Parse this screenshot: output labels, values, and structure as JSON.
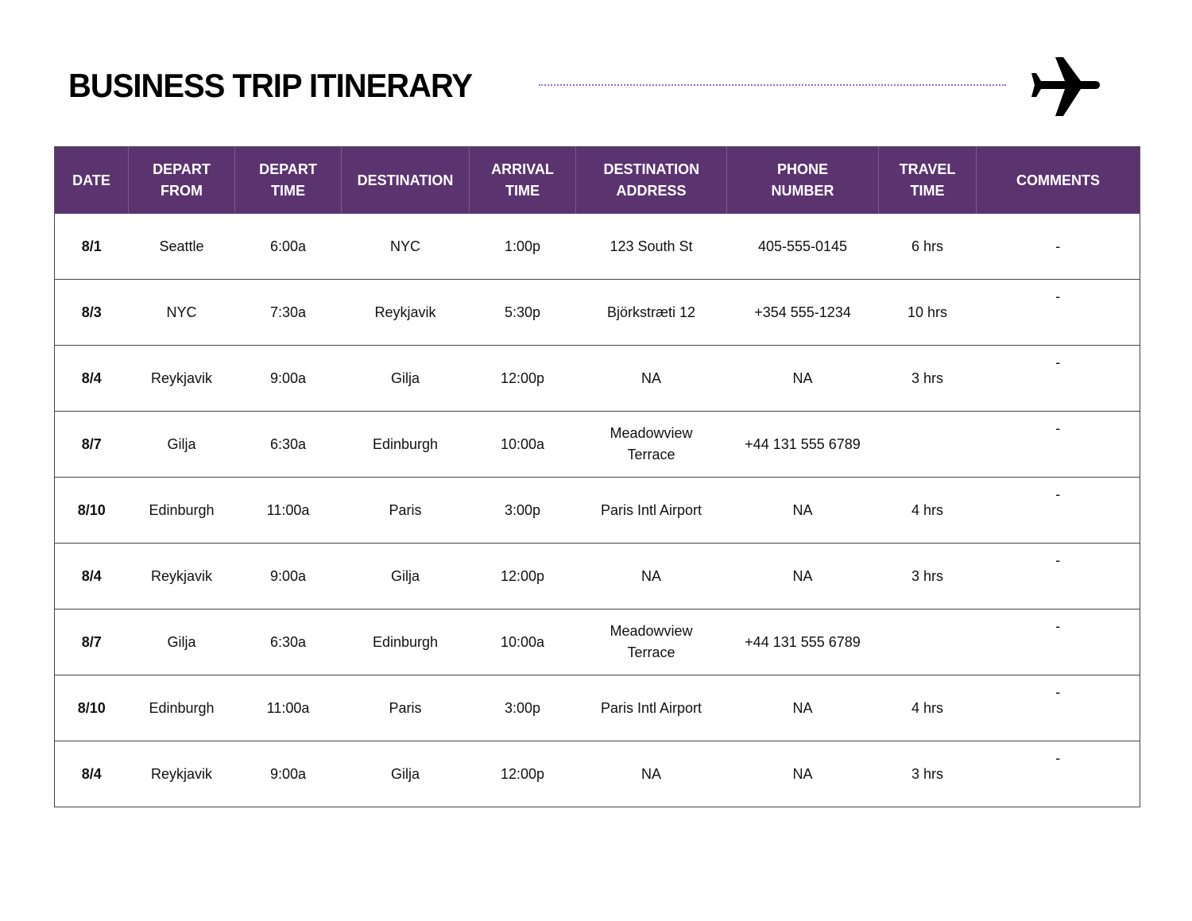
{
  "header": {
    "title": "BUSINESS TRIP ITINERARY",
    "icon": "airplane-icon",
    "divider_color": "#9a6cc4"
  },
  "colors": {
    "header_bg": "#5b346f",
    "header_text": "#ffffff"
  },
  "table": {
    "columns": [
      "DATE",
      "DEPART FROM",
      "DEPART TIME",
      "DESTINATION",
      "ARRIVAL TIME",
      "DESTINATION ADDRESS",
      "PHONE NUMBER",
      "TRAVEL TIME",
      "COMMENTS"
    ],
    "rows": [
      {
        "date": "8/1",
        "depart_from": "Seattle",
        "depart_time": "6:00a",
        "destination": "NYC",
        "arrival_time": "1:00p",
        "address": "123 South St",
        "phone": "405-555-0145",
        "travel_time": "6 hrs",
        "comments": "-"
      },
      {
        "date": "8/3",
        "depart_from": "NYC",
        "depart_time": "7:30a",
        "destination": "Reykjavik",
        "arrival_time": "5:30p",
        "address": "Björkstræti 12",
        "phone": "+354 555-1234",
        "travel_time": "10 hrs",
        "comments": "-"
      },
      {
        "date": "8/4",
        "depart_from": "Reykjavik",
        "depart_time": "9:00a",
        "destination": "Gilja",
        "arrival_time": "12:00p",
        "address": "NA",
        "phone": "NA",
        "travel_time": "3 hrs",
        "comments": "-"
      },
      {
        "date": "8/7",
        "depart_from": "Gilja",
        "depart_time": "6:30a",
        "destination": "Edinburgh",
        "arrival_time": "10:00a",
        "address": "Meadowview Terrace",
        "phone": "+44 131 555 6789",
        "travel_time": "",
        "comments": "-"
      },
      {
        "date": "8/10",
        "depart_from": "Edinburgh",
        "depart_time": "11:00a",
        "destination": "Paris",
        "arrival_time": "3:00p",
        "address": "Paris Intl Airport",
        "phone": "NA",
        "travel_time": "4 hrs",
        "comments": "-"
      },
      {
        "date": "8/4",
        "depart_from": "Reykjavik",
        "depart_time": "9:00a",
        "destination": "Gilja",
        "arrival_time": "12:00p",
        "address": "NA",
        "phone": "NA",
        "travel_time": "3 hrs",
        "comments": "-"
      },
      {
        "date": "8/7",
        "depart_from": "Gilja",
        "depart_time": "6:30a",
        "destination": "Edinburgh",
        "arrival_time": "10:00a",
        "address": "Meadowview Terrace",
        "phone": "+44 131 555 6789",
        "travel_time": "",
        "comments": "-"
      },
      {
        "date": "8/10",
        "depart_from": "Edinburgh",
        "depart_time": "11:00a",
        "destination": "Paris",
        "arrival_time": "3:00p",
        "address": "Paris Intl Airport",
        "phone": "NA",
        "travel_time": "4 hrs",
        "comments": "-"
      },
      {
        "date": "8/4",
        "depart_from": "Reykjavik",
        "depart_time": "9:00a",
        "destination": "Gilja",
        "arrival_time": "12:00p",
        "address": "NA",
        "phone": "NA",
        "travel_time": "3 hrs",
        "comments": "-"
      }
    ]
  }
}
